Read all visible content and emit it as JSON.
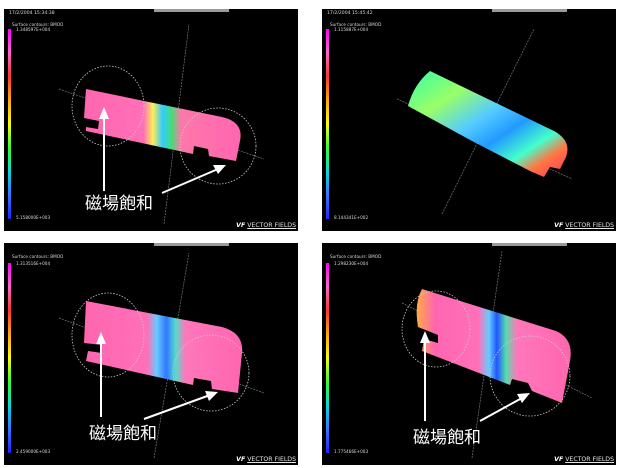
{
  "panels": [
    {
      "timestamp": "17/2/2004 15:34:38",
      "legend_title": "Surface contours: BMOD",
      "legend_max": "1.348597E+004",
      "legend_min": "5.158000E+003",
      "logo": "VECTOR FIELDS",
      "annotation": "磁場飽和"
    },
    {
      "timestamp": "17/2/2004 15:45:42",
      "legend_title": "Surface contours: BMOD",
      "legend_max": "1.115887E+004",
      "legend_min": "8.144341E+002",
      "logo": "VECTOR FIELDS"
    },
    {
      "timestamp": "",
      "legend_title": "Surface contours: BMOD",
      "legend_max": "1.313516E+004",
      "legend_min": "2.459000E+003",
      "logo": "VECTOR FIELDS",
      "annotation": "磁場飽和"
    },
    {
      "timestamp": "",
      "legend_title": "Surface contours: BMOD",
      "legend_max": "1.298230E+004",
      "legend_min": "1.775466E+003",
      "logo": "VECTOR FIELDS",
      "annotation": "磁場飽和"
    }
  ],
  "logo_glyph": "VF"
}
